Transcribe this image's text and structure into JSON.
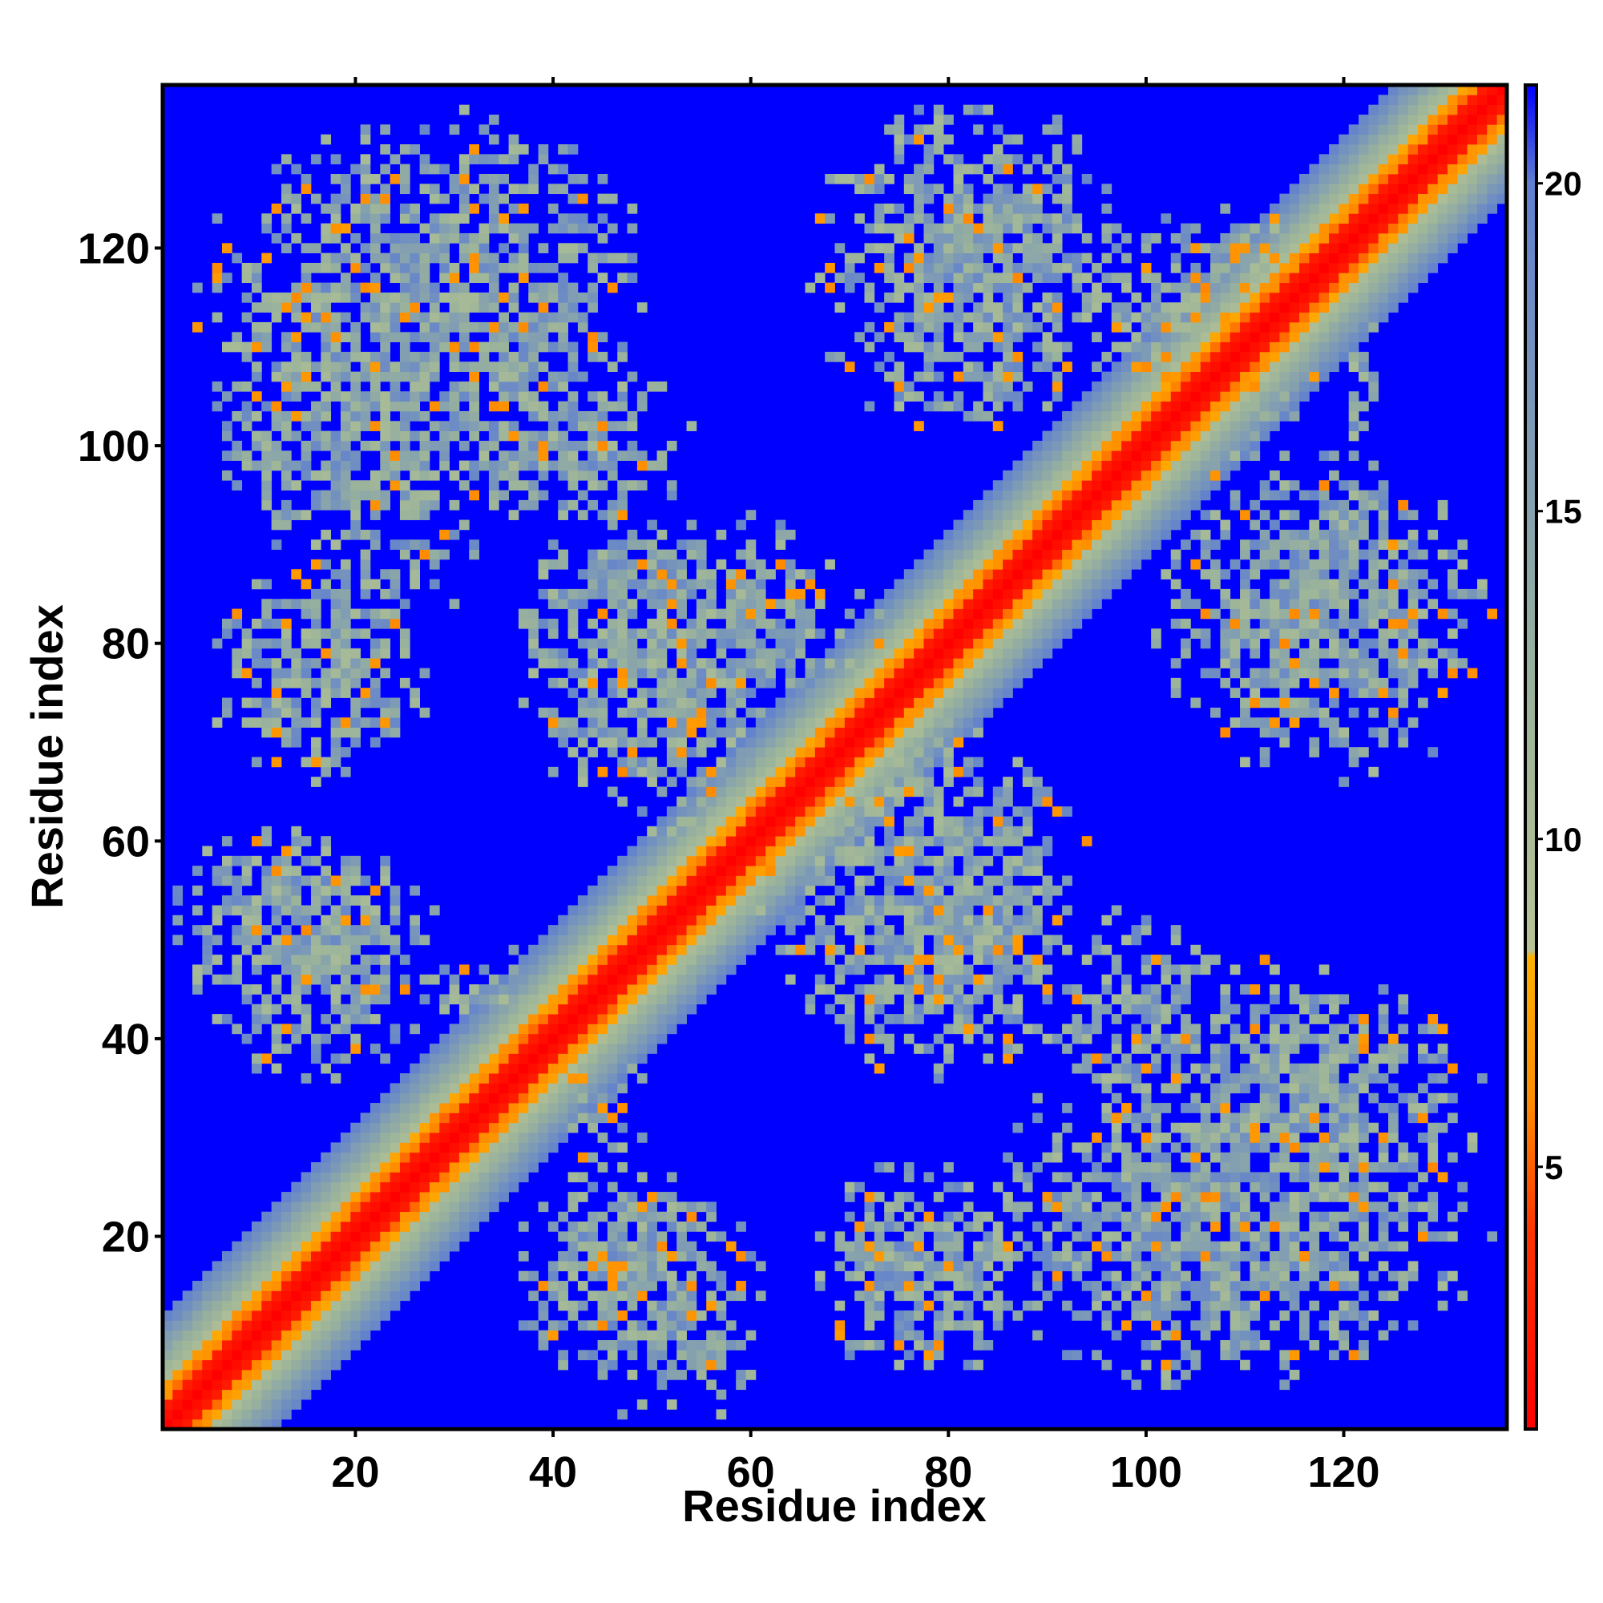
{
  "chart_data": {
    "type": "heatmap",
    "title": "",
    "xlabel": "Residue index",
    "ylabel": "Residue index",
    "xlim": [
      1,
      136
    ],
    "ylim": [
      1,
      136
    ],
    "grid": false,
    "x_ticks": [
      20,
      40,
      60,
      80,
      100,
      120
    ],
    "y_ticks": [
      20,
      40,
      60,
      80,
      100,
      120
    ],
    "value_description": "pairwise residue distance (colour scale); values above 21 shown as background blue",
    "colorbar": {
      "ticks": [
        5,
        10,
        15,
        20
      ],
      "range": [
        1,
        21.5
      ],
      "colors": [
        {
          "value": 1,
          "color": "#ff0000"
        },
        {
          "value": 4,
          "color": "#ff3300"
        },
        {
          "value": 6,
          "color": "#ff8c00"
        },
        {
          "value": 8.2,
          "color": "#ffb000"
        },
        {
          "value": 8.3,
          "color": "#b7c394"
        },
        {
          "value": 12,
          "color": "#9cb49a"
        },
        {
          "value": 16,
          "color": "#7f9cb4"
        },
        {
          "value": 20,
          "color": "#5f7fd0"
        },
        {
          "value": 21.5,
          "color": "#0000ff"
        }
      ]
    },
    "background_value": 22,
    "diagonal_band": {
      "core_width": 2.5,
      "orange_width": 4.5,
      "halo_width": 11
    },
    "contact_regions": [
      {
        "x": [
          3,
          40
        ],
        "y": [
          80,
          136
        ],
        "density": 0.55
      },
      {
        "x": [
          28,
          55
        ],
        "y": [
          90,
          110
        ],
        "density": 0.5
      },
      {
        "x": [
          5,
          28
        ],
        "y": [
          65,
          88
        ],
        "density": 0.55
      },
      {
        "x": [
          0,
          25
        ],
        "y": [
          42,
          62
        ],
        "density": 0.55
      },
      {
        "x": [
          35,
          65
        ],
        "y": [
          65,
          95
        ],
        "density": 0.6
      },
      {
        "x": [
          35,
          60
        ],
        "y": [
          3,
          30
        ],
        "density": 0.55
      },
      {
        "x": [
          65,
          90
        ],
        "y": [
          5,
          28
        ],
        "density": 0.55
      },
      {
        "x": [
          60,
          95
        ],
        "y": [
          35,
          75
        ],
        "density": 0.6
      },
      {
        "x": [
          95,
          135
        ],
        "y": [
          15,
          50
        ],
        "density": 0.55
      },
      {
        "x": [
          65,
          100
        ],
        "y": [
          100,
          136
        ],
        "density": 0.6
      },
      {
        "x": [
          100,
          135
        ],
        "y": [
          65,
          98
        ],
        "density": 0.55
      },
      {
        "x": [
          95,
          120
        ],
        "y": [
          100,
          125
        ],
        "density": 0.65
      },
      {
        "x": [
          25,
          40
        ],
        "y": [
          40,
          50
        ],
        "density": 0.4
      }
    ]
  }
}
